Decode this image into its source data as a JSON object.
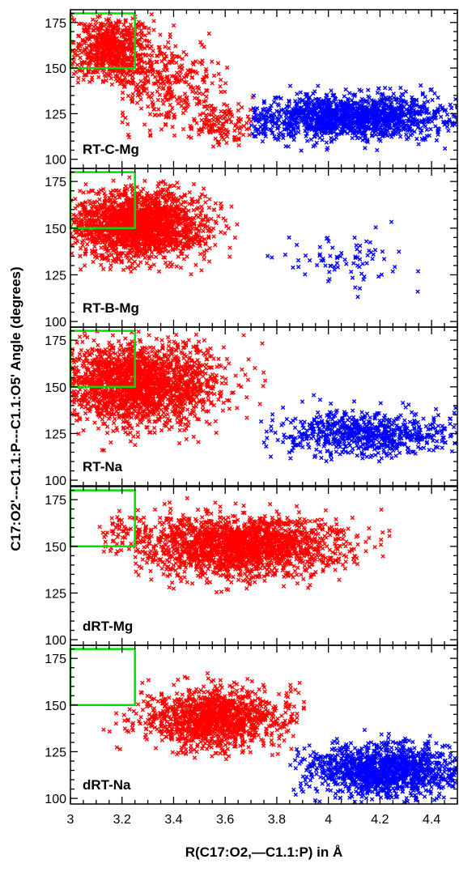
{
  "chart_data": {
    "type": "scatter",
    "xlabel": "R(C17:O2,—C1.1:P) in Å",
    "ylabel": "C17:O2'---C1.1:P---C1.1:O5' Angle (degrees)",
    "xlim": [
      3.0,
      4.5
    ],
    "xticks": [
      "3",
      "3.2",
      "3.4",
      "3.6",
      "3.8",
      "4",
      "4.2",
      "4.4"
    ],
    "yticks": [
      "100",
      "125",
      "150",
      "175"
    ],
    "colors": {
      "red": "#ff0000",
      "blue": "#0000ff",
      "box": "#00dd00",
      "axis": "#000000"
    },
    "highlight_box": {
      "x": [
        3.0,
        3.25
      ],
      "y": [
        150,
        180
      ]
    },
    "panels": [
      {
        "label": "RT-C-Mg",
        "ylim": [
          95,
          182
        ],
        "clusters": [
          {
            "color": "red",
            "n": 700,
            "cx": 3.16,
            "cy": 160,
            "sx": 0.08,
            "sy": 10,
            "xmin": 3.0,
            "xmax": 3.45,
            "ymin": 140,
            "ymax": 180
          },
          {
            "color": "red",
            "n": 320,
            "cx": 3.38,
            "cy": 140,
            "sx": 0.11,
            "sy": 13,
            "xmin": 3.2,
            "xmax": 3.65,
            "ymin": 112,
            "ymax": 172
          },
          {
            "color": "red",
            "n": 130,
            "cx": 3.58,
            "cy": 120,
            "sx": 0.07,
            "sy": 6,
            "xmin": 3.45,
            "xmax": 3.72,
            "ymin": 105,
            "ymax": 135
          },
          {
            "color": "blue",
            "n": 1500,
            "cx": 4.08,
            "cy": 123,
            "sx": 0.21,
            "sy": 6,
            "xmin": 3.7,
            "xmax": 4.5,
            "ymin": 102,
            "ymax": 145
          }
        ]
      },
      {
        "label": "RT-B-Mg",
        "ylim": [
          97,
          182
        ],
        "clusters": [
          {
            "color": "red",
            "n": 2000,
            "cx": 3.26,
            "cy": 152,
            "sx": 0.13,
            "sy": 9,
            "xmin": 3.0,
            "xmax": 3.72,
            "ymin": 125,
            "ymax": 180
          },
          {
            "color": "blue",
            "n": 80,
            "cx": 4.05,
            "cy": 133,
            "sx": 0.15,
            "sy": 8,
            "xmin": 3.72,
            "xmax": 4.35,
            "ymin": 112,
            "ymax": 155
          }
        ]
      },
      {
        "label": "RT-Na",
        "ylim": [
          97,
          182
        ],
        "clusters": [
          {
            "color": "red",
            "n": 2000,
            "cx": 3.27,
            "cy": 152,
            "sx": 0.15,
            "sy": 11,
            "xmin": 3.0,
            "xmax": 3.78,
            "ymin": 115,
            "ymax": 180
          },
          {
            "color": "blue",
            "n": 700,
            "cx": 4.15,
            "cy": 125,
            "sx": 0.17,
            "sy": 6,
            "xmin": 3.72,
            "xmax": 4.5,
            "ymin": 110,
            "ymax": 165
          }
        ]
      },
      {
        "label": "dRT-Mg",
        "ylim": [
          97,
          182
        ],
        "clusters": [
          {
            "color": "red",
            "n": 70,
            "cx": 3.2,
            "cy": 157,
            "sx": 0.05,
            "sy": 6,
            "xmin": 3.05,
            "xmax": 3.3,
            "ymin": 145,
            "ymax": 172
          },
          {
            "color": "red",
            "n": 2000,
            "cx": 3.65,
            "cy": 150,
            "sx": 0.2,
            "sy": 8,
            "xmin": 3.25,
            "xmax": 4.25,
            "ymin": 125,
            "ymax": 176
          }
        ]
      },
      {
        "label": "dRT-Na",
        "ylim": [
          97,
          182
        ],
        "clusters": [
          {
            "color": "red",
            "n": 1300,
            "cx": 3.55,
            "cy": 143,
            "sx": 0.14,
            "sy": 8,
            "xmin": 3.12,
            "xmax": 3.92,
            "ymin": 120,
            "ymax": 172
          },
          {
            "color": "blue",
            "n": 1300,
            "cx": 4.22,
            "cy": 115,
            "sx": 0.15,
            "sy": 7,
            "xmin": 3.85,
            "xmax": 4.5,
            "ymin": 98,
            "ymax": 145
          }
        ]
      }
    ]
  }
}
